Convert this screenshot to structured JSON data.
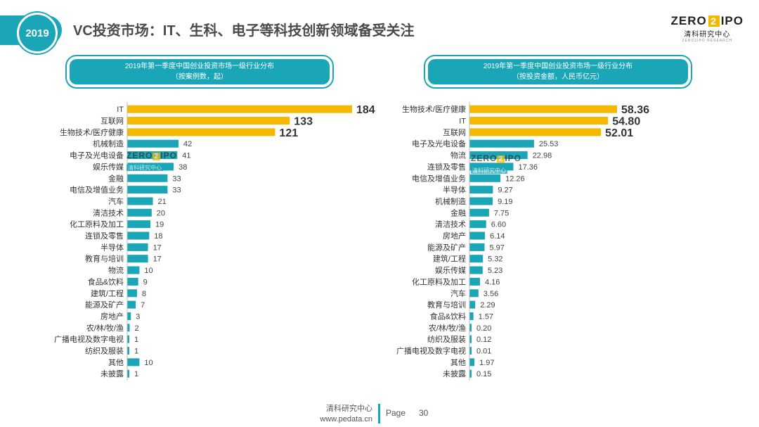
{
  "header": {
    "year": "2019",
    "title": "VC投资市场：IT、生科、电子等科技创新领域备受关注",
    "logo_left": "ZERO",
    "logo_box": "2",
    "logo_right": "IPO",
    "logo_sub": "清科研究中心",
    "logo_tiny": "ZERO2IPO RESEARCH"
  },
  "footer": {
    "org": "清科研究中心",
    "url": "www.pedata.cn",
    "page_label": "Page",
    "page_num": "30"
  },
  "colors": {
    "teal": "#1aa6b7",
    "gold": "#f5b800"
  },
  "chart_data": [
    {
      "type": "bar",
      "orientation": "horizontal",
      "title": "2019年第一季度中国创业投资市场一级行业分布",
      "subtitle": "（按案例数，起）",
      "categories": [
        "IT",
        "互联网",
        "生物技术/医疗健康",
        "机械制造",
        "电子及光电设备",
        "娱乐传媒",
        "金融",
        "电信及增值业务",
        "汽车",
        "清洁技术",
        "化工原料及加工",
        "连锁及零售",
        "半导体",
        "教育与培训",
        "物流",
        "食品&饮料",
        "建筑/工程",
        "能源及矿产",
        "房地产",
        "农/林/牧/渔",
        "广播电视及数字电视",
        "纺织及服装",
        "其他",
        "未披露"
      ],
      "values": [
        184,
        133,
        121,
        42,
        41,
        38,
        33,
        33,
        21,
        20,
        19,
        18,
        17,
        17,
        10,
        9,
        8,
        7,
        3,
        2,
        1,
        1,
        10,
        1
      ],
      "labels": [
        "184",
        "133",
        "121",
        "42",
        "41",
        "38",
        "33",
        "33",
        "21",
        "20",
        "19",
        "18",
        "17",
        "17",
        "10",
        "9",
        "8",
        "7",
        "3",
        "2",
        "1",
        "1",
        "10",
        "1"
      ],
      "highlight_top": 3,
      "xlim": [
        0,
        184
      ]
    },
    {
      "type": "bar",
      "orientation": "horizontal",
      "title": "2019年第一季度中国创业投资市场一级行业分布",
      "subtitle": "（按投资金额，人民币亿元）",
      "categories": [
        "生物技术/医疗健康",
        "IT",
        "互联网",
        "电子及光电设备",
        "物流",
        "连锁及零售",
        "电信及增值业务",
        "半导体",
        "机械制造",
        "金融",
        "清洁技术",
        "房地产",
        "能源及矿产",
        "建筑/工程",
        "娱乐传媒",
        "化工原料及加工",
        "汽车",
        "教育与培训",
        "食品&饮料",
        "农/林/牧/渔",
        "纺织及服装",
        "广播电视及数字电视",
        "其他",
        "未披露"
      ],
      "values": [
        58.36,
        54.8,
        52.01,
        25.53,
        22.98,
        17.36,
        12.26,
        9.27,
        9.19,
        7.75,
        6.6,
        6.14,
        5.97,
        5.32,
        5.23,
        4.16,
        3.56,
        2.29,
        1.57,
        0.2,
        0.12,
        0.01,
        1.97,
        0.15
      ],
      "labels": [
        "58.36",
        "54.80",
        "52.01",
        "25.53",
        "22.98",
        "17.36",
        "12.26",
        "9.27",
        "9.19",
        "7.75",
        "6.60",
        "6.14",
        "5.97",
        "5.32",
        "5.23",
        "4.16",
        "3.56",
        "2.29",
        "1.57",
        "0.20",
        "0.12",
        "0.01",
        "1.97",
        "0.15"
      ],
      "highlight_top": 3,
      "xlim": [
        0,
        58.36
      ]
    }
  ]
}
